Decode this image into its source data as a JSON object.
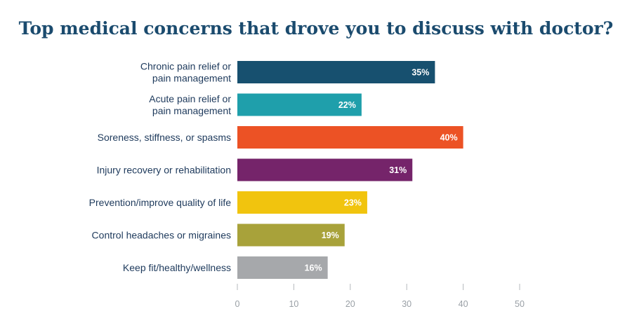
{
  "chart_data": {
    "type": "bar",
    "orientation": "horizontal",
    "title": "Top medical concerns that drove you to discuss with doctor?",
    "categories": [
      [
        "Chronic pain relief or",
        "pain management"
      ],
      [
        "Acute pain relief or",
        "pain management"
      ],
      [
        "Soreness, stiffness, or spasms"
      ],
      [
        "Injury recovery or rehabilitation"
      ],
      [
        "Prevention/improve quality of life"
      ],
      [
        "Control headaches or migraines"
      ],
      [
        "Keep fit/healthy/wellness"
      ]
    ],
    "values": [
      35,
      22,
      40,
      31,
      23,
      19,
      16
    ],
    "value_labels": [
      "35%",
      "22%",
      "40%",
      "31%",
      "23%",
      "19%",
      "16%"
    ],
    "colors": [
      "#17506f",
      "#1f9fab",
      "#ec5225",
      "#75246a",
      "#f1c40e",
      "#a8a23a",
      "#a6a8ab"
    ],
    "xlim": [
      0,
      50
    ],
    "xticks": [
      0,
      10,
      20,
      30,
      40,
      50
    ],
    "xtick_labels": [
      "0",
      "10",
      "20",
      "30",
      "40",
      "50"
    ],
    "grid": false,
    "legend": "none"
  }
}
